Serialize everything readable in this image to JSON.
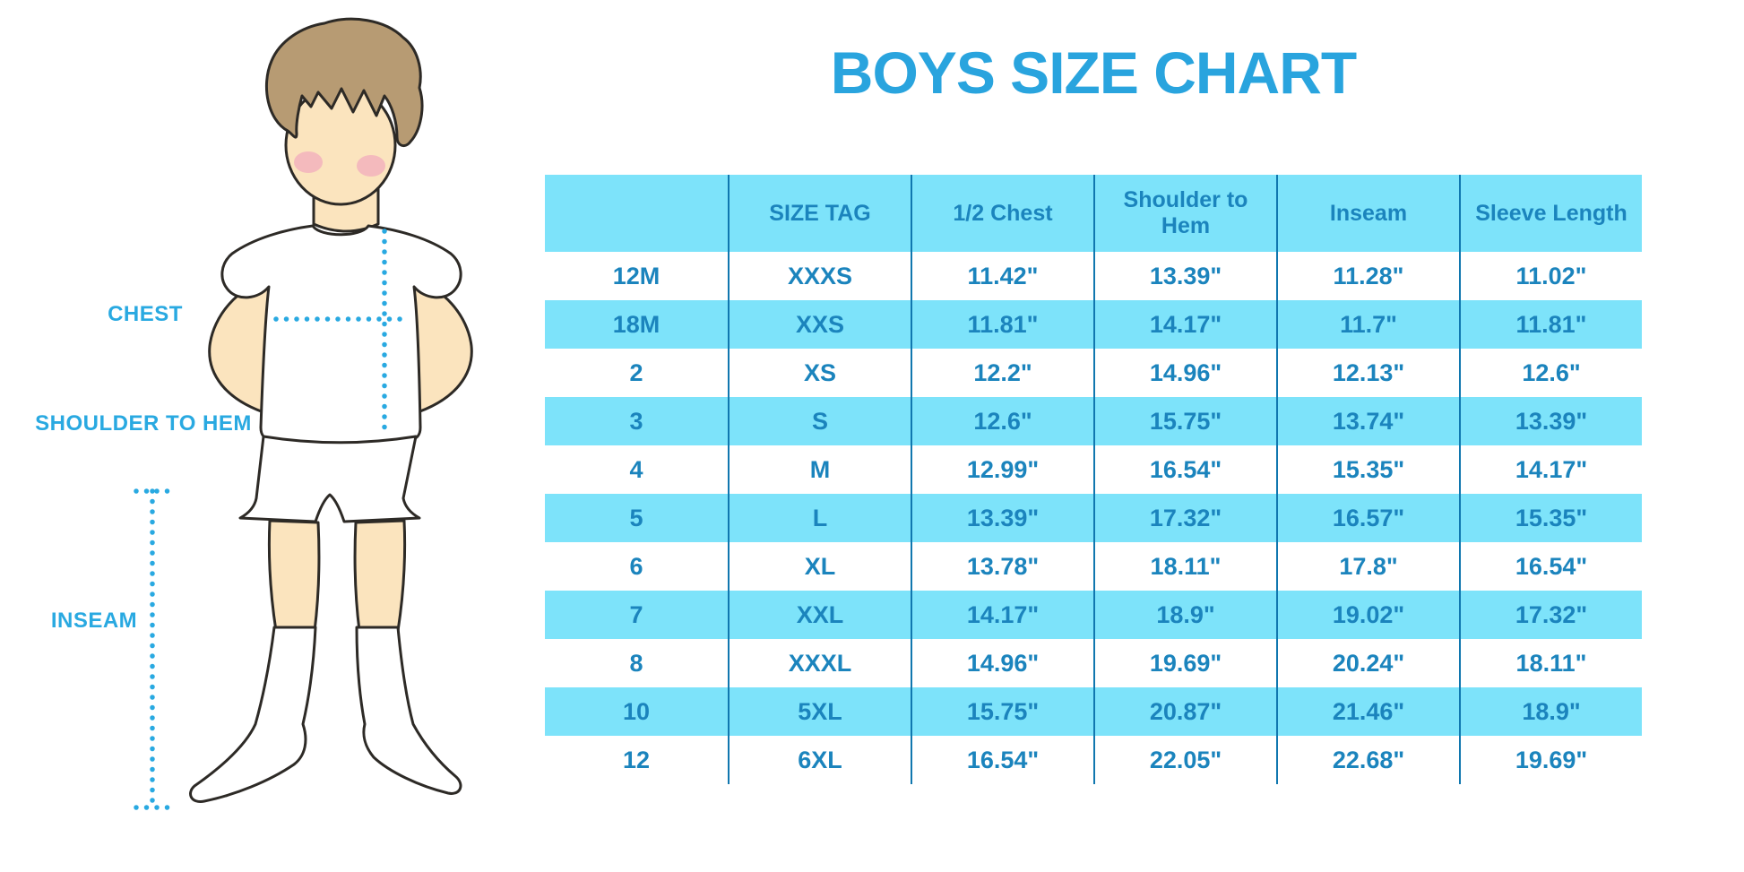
{
  "page": {
    "title": "BOYS SIZE CHART"
  },
  "figure": {
    "labels": {
      "chest": "CHEST",
      "shoulder_to_hem": "SHOULDER TO HEM",
      "inseam": "INSEAM"
    }
  },
  "colors": {
    "title_blue": "#29A4DE",
    "row_band_blue": "#7DE3FA",
    "divider_blue": "#1077AF",
    "table_text_blue": "#1B84BD",
    "dotted_line_blue": "#29A9E1",
    "skin": "#FBE4BE",
    "hair": "#B79B73",
    "blush": "#F3AFBD",
    "outline": "#2D2A26"
  },
  "chart_data": {
    "type": "table",
    "title": "BOYS SIZE CHART",
    "columns": [
      "",
      "SIZE TAG",
      "1/2 Chest",
      "Shoulder to Hem",
      "Inseam",
      "Sleeve Length"
    ],
    "rows": [
      [
        "12M",
        "XXXS",
        "11.42\"",
        "13.39\"",
        "11.28\"",
        "11.02\""
      ],
      [
        "18M",
        "XXS",
        "11.81\"",
        "14.17\"",
        "11.7\"",
        "11.81\""
      ],
      [
        "2",
        "XS",
        "12.2\"",
        "14.96\"",
        "12.13\"",
        "12.6\""
      ],
      [
        "3",
        "S",
        "12.6\"",
        "15.75\"",
        "13.74\"",
        "13.39\""
      ],
      [
        "4",
        "M",
        "12.99\"",
        "16.54\"",
        "15.35\"",
        "14.17\""
      ],
      [
        "5",
        "L",
        "13.39\"",
        "17.32\"",
        "16.57\"",
        "15.35\""
      ],
      [
        "6",
        "XL",
        "13.78\"",
        "18.11\"",
        "17.8\"",
        "16.54\""
      ],
      [
        "7",
        "XXL",
        "14.17\"",
        "18.9\"",
        "19.02\"",
        "17.32\""
      ],
      [
        "8",
        "XXXL",
        "14.96\"",
        "19.69\"",
        "20.24\"",
        "18.11\""
      ],
      [
        "10",
        "5XL",
        "15.75\"",
        "20.87\"",
        "21.46\"",
        "18.9\""
      ],
      [
        "12",
        "6XL",
        "16.54\"",
        "22.05\"",
        "22.68\"",
        "19.69\""
      ]
    ],
    "striped_row_indices": [
      1,
      3,
      5,
      7,
      9
    ],
    "layout": "light-blue header band; alternating light-blue row bands; 5 dark-blue vertical column dividers; all measurements in inches"
  }
}
